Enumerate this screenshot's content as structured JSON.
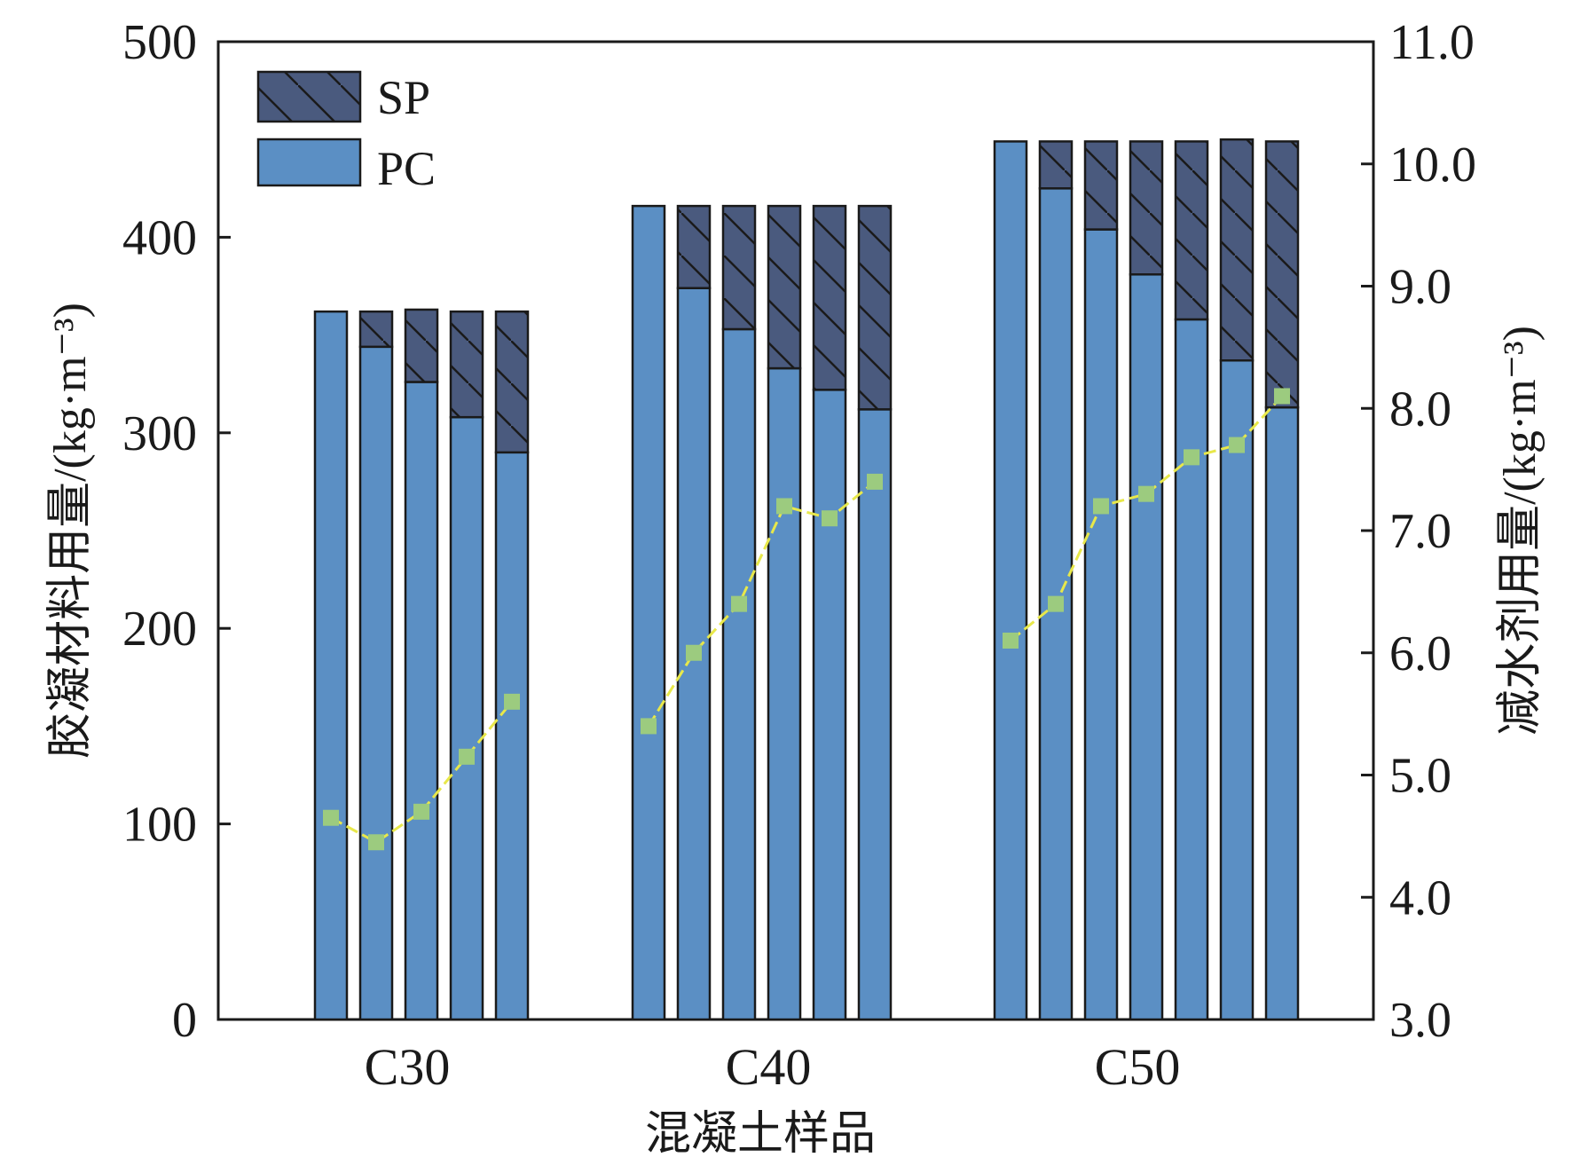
{
  "chart_data": {
    "type": "bar",
    "stacked": true,
    "xlabel": "混凝土样品",
    "ylabel_left": "胶凝材料用量/(kg·m⁻³)",
    "ylabel_right": "减水剂用量/(kg·m⁻³)",
    "ylim_left": [
      0,
      500
    ],
    "yticks_left": [
      "0",
      "100",
      "200",
      "300",
      "400",
      "500"
    ],
    "ylim_right": [
      3.0,
      11.0
    ],
    "yticks_right": [
      "3.0",
      "4.0",
      "5.0",
      "6.0",
      "7.0",
      "8.0",
      "9.0",
      "10.0",
      "11.0"
    ],
    "legend": {
      "position": "top-left",
      "entries": [
        {
          "name": "SP",
          "color": "#4a5a7e",
          "hatch": true
        },
        {
          "name": "PC",
          "color": "#5b8fc4",
          "hatch": false
        }
      ]
    },
    "groups": [
      {
        "category": "C30",
        "PC": [
          362,
          344,
          326,
          308,
          290
        ],
        "SP": [
          0,
          18,
          37,
          54,
          72
        ],
        "reducer": [
          4.65,
          4.45,
          4.7,
          5.15,
          5.6
        ]
      },
      {
        "category": "C40",
        "PC": [
          416,
          374,
          353,
          333,
          322,
          312
        ],
        "SP": [
          0,
          42,
          63,
          83,
          94,
          104
        ],
        "reducer": [
          5.4,
          6.0,
          6.4,
          7.2,
          7.1,
          7.4
        ]
      },
      {
        "category": "C50",
        "PC": [
          449,
          425,
          404,
          381,
          358,
          337,
          313
        ],
        "SP": [
          0,
          24,
          45,
          68,
          91,
          113,
          136
        ],
        "reducer": [
          6.1,
          6.4,
          7.2,
          7.3,
          7.6,
          7.7,
          8.1
        ]
      }
    ],
    "line_color": "#e8e84a",
    "marker_color": "#9ccb7f"
  }
}
